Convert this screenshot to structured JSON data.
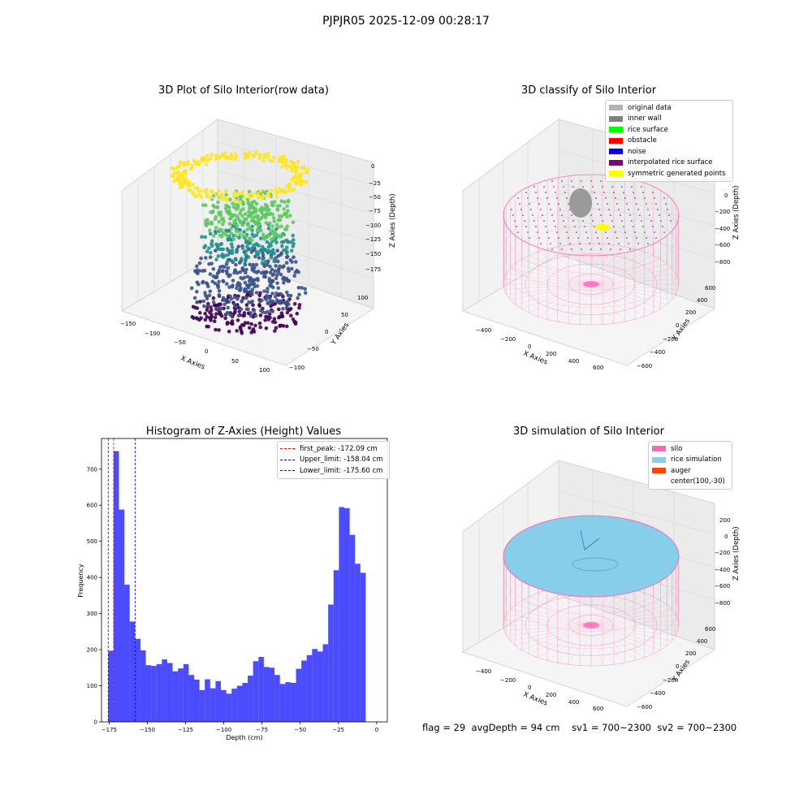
{
  "suptitle": "PJPJR05 2025-12-09 00:28:17",
  "plots": {
    "raw": {
      "title": "3D Plot of Silo Interior(row data)",
      "xlabel": "X Axies",
      "ylabel": "Y Axies",
      "zlabel": "Z Axies (Depth)",
      "xticks": [
        "−150",
        "−100",
        "−50",
        "0",
        "50",
        "100"
      ],
      "yticks": [
        "−100",
        "−50",
        "0",
        "50",
        "100"
      ],
      "zticks": [
        "0",
        "−25",
        "−50",
        "−75",
        "−100",
        "−125",
        "−150",
        "−175"
      ],
      "colormap": [
        "#440154",
        "#3b528b",
        "#21918c",
        "#5ec962",
        "#fde725"
      ]
    },
    "classify": {
      "title": "3D classify of Silo Interior",
      "xlabel": "X Axies",
      "ylabel": "Y Axies",
      "zlabel": "Z Axies (Depth)",
      "xticks": [
        "−400",
        "−200",
        "0",
        "200",
        "400",
        "600"
      ],
      "yticks": [
        "−600",
        "−400",
        "−200",
        "0",
        "200",
        "400",
        "600"
      ],
      "zticks": [
        "200",
        "0",
        "−200",
        "−400",
        "−600",
        "−800"
      ],
      "legend": [
        {
          "label": "original data",
          "color": "#b3b3b3"
        },
        {
          "label": "inner wall",
          "color": "#808080"
        },
        {
          "label": "rice surface",
          "color": "#00ff00"
        },
        {
          "label": "obstacle",
          "color": "#ff0000"
        },
        {
          "label": "noise",
          "color": "#0000ff"
        },
        {
          "label": "interpolated rice surface",
          "color": "#800080"
        },
        {
          "label": "symmetric generated points",
          "color": "#ffff00"
        }
      ]
    },
    "simulation": {
      "title": "3D simulation of Silo Interior",
      "xlabel": "X Axies",
      "ylabel": "Y Axies",
      "zlabel": "Z Axies (Depth)",
      "xticks": [
        "−400",
        "−200",
        "0",
        "200",
        "400",
        "600"
      ],
      "yticks": [
        "−600",
        "−400",
        "−200",
        "0",
        "200",
        "400",
        "600"
      ],
      "zticks": [
        "200",
        "0",
        "−200",
        "−400",
        "−600",
        "−800"
      ],
      "legend": [
        {
          "label": "silo",
          "color": "#ff69b4"
        },
        {
          "label": "rice simulation",
          "color": "#87ceeb"
        },
        {
          "label": "auger",
          "color": "#ff4500"
        },
        {
          "label": "center(100,-30)",
          "color": ""
        }
      ]
    }
  },
  "chart_data": {
    "type": "bar",
    "title": "Histogram of Z-Axies (Height) Values",
    "xlabel": "Depth (cm)",
    "ylabel": "Frequency",
    "xlim": [
      -180,
      7
    ],
    "ylim": [
      0,
      785
    ],
    "xticks": [
      -175,
      -150,
      -125,
      -100,
      -75,
      -50,
      -25,
      0
    ],
    "yticks": [
      0,
      100,
      200,
      300,
      400,
      500,
      600,
      700
    ],
    "bar_color": "#0000ff",
    "bin_start": -175.6,
    "bin_width": 3.51,
    "values": [
      197,
      750,
      588,
      380,
      278,
      230,
      198,
      157,
      155,
      160,
      173,
      163,
      140,
      148,
      160,
      130,
      117,
      88,
      118,
      93,
      113,
      88,
      78,
      92,
      100,
      108,
      128,
      168,
      180,
      152,
      150,
      130,
      105,
      110,
      108,
      147,
      170,
      185,
      202,
      195,
      215,
      325,
      420,
      595,
      592,
      518,
      438,
      413
    ],
    "vlines": [
      {
        "label": "first_peak: -172.09 cm",
        "x": -172.09,
        "color": "#ff0000"
      },
      {
        "label": "Upper_limit: -158.04 cm",
        "x": -158.04,
        "color": "#0000ff"
      },
      {
        "label": "Lower_limit: -175.60 cm",
        "x": -175.6,
        "color": "#0000ff"
      }
    ]
  },
  "status": {
    "flag": "flag = 29",
    "avg_depth": "avgDepth = 94 cm",
    "sv1": "sv1 = 700~2300",
    "sv2": "sv2 = 700~2300"
  }
}
